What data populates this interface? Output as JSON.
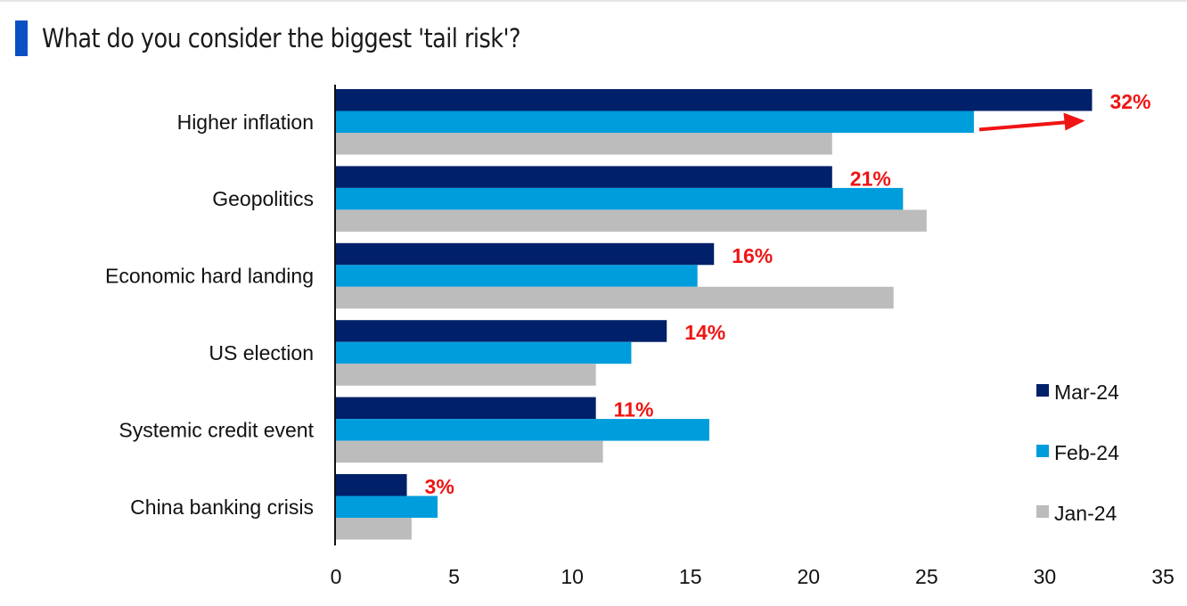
{
  "title": "What do you consider the biggest 'tail risk'?",
  "chart_data": {
    "type": "bar",
    "orientation": "horizontal",
    "title": "What do you consider the biggest 'tail risk'?",
    "xlabel": "",
    "ylabel": "",
    "xlim": [
      0,
      35
    ],
    "xticks": [
      0,
      5,
      10,
      15,
      20,
      25,
      30,
      35
    ],
    "grid": false,
    "legend_position": "bottom-right",
    "categories": [
      "Higher inflation",
      "Geopolitics",
      "Economic hard landing",
      "US election",
      "Systemic credit event",
      "China banking crisis"
    ],
    "series": [
      {
        "name": "Mar-24",
        "color": "#00206a",
        "values": [
          32,
          21,
          16,
          14,
          11,
          3
        ]
      },
      {
        "name": "Feb-24",
        "color": "#009ddc",
        "values": [
          27,
          24,
          15.3,
          12.5,
          15.8,
          4.3
        ]
      },
      {
        "name": "Jan-24",
        "color": "#bcbcbc",
        "values": [
          21,
          25,
          23.6,
          11,
          11.3,
          3.2
        ]
      }
    ],
    "data_labels": [
      "32%",
      "21%",
      "16%",
      "14%",
      "11%",
      "3%"
    ],
    "data_label_color": "#f01414",
    "annotations": [
      {
        "type": "arrow",
        "category": "Higher inflation",
        "from_value": 27,
        "to_value": 32,
        "color": "#f01414"
      }
    ]
  }
}
